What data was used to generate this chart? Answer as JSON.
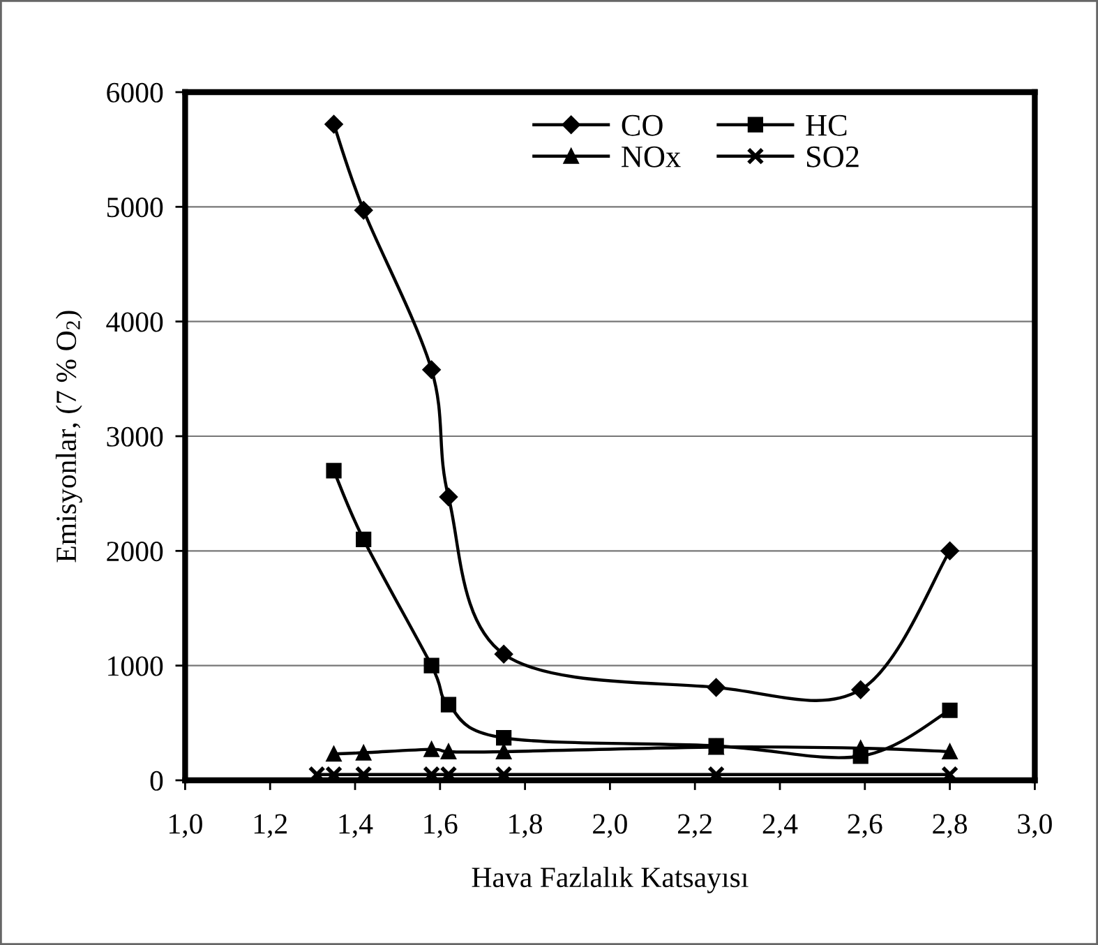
{
  "chart_data": {
    "type": "line",
    "xlabel": "Hava Fazlalık Katsayısı",
    "ylabel": "Emisyonlar, (7 % O$_{2}$)",
    "xlim": [
      1.0,
      3.0
    ],
    "ylim": [
      0,
      6000
    ],
    "xticks": [
      {
        "value": 1.0,
        "label": "1,0"
      },
      {
        "value": 1.2,
        "label": "1,2"
      },
      {
        "value": 1.4,
        "label": "1,4"
      },
      {
        "value": 1.6,
        "label": "1,6"
      },
      {
        "value": 1.8,
        "label": "1,8"
      },
      {
        "value": 2.0,
        "label": "2,0"
      },
      {
        "value": 2.2,
        "label": "2,2"
      },
      {
        "value": 2.4,
        "label": "2,4"
      },
      {
        "value": 2.6,
        "label": "2,6"
      },
      {
        "value": 2.8,
        "label": "2,8"
      },
      {
        "value": 3.0,
        "label": "3,0"
      }
    ],
    "yticks": [
      0,
      1000,
      2000,
      3000,
      4000,
      5000,
      6000
    ],
    "grid": "y",
    "legend": "top right",
    "line_style": "solid",
    "series": [
      {
        "name": "CO",
        "color": "#000000",
        "marker": "diamond",
        "x": [
          1.35,
          1.42,
          1.58,
          1.62,
          1.75,
          2.25,
          2.59,
          2.8
        ],
        "values": [
          5720,
          4970,
          3580,
          2470,
          1100,
          810,
          790,
          2000
        ]
      },
      {
        "name": "HC",
        "color": "#000000",
        "marker": "square",
        "x": [
          1.35,
          1.42,
          1.58,
          1.62,
          1.75,
          2.25,
          2.59,
          2.8
        ],
        "values": [
          2700,
          2100,
          1000,
          660,
          370,
          300,
          210,
          610
        ]
      },
      {
        "name": "NOx",
        "color": "#000000",
        "marker": "triangle",
        "x": [
          1.35,
          1.42,
          1.58,
          1.62,
          1.75,
          2.25,
          2.59,
          2.8
        ],
        "values": [
          230,
          240,
          270,
          250,
          250,
          290,
          280,
          250
        ]
      },
      {
        "name": "SO2",
        "color": "#000000",
        "marker": "cross",
        "x": [
          1.31,
          1.35,
          1.42,
          1.58,
          1.62,
          1.75,
          2.25,
          2.8
        ],
        "values": [
          50,
          50,
          50,
          50,
          50,
          50,
          50,
          50
        ]
      }
    ]
  }
}
